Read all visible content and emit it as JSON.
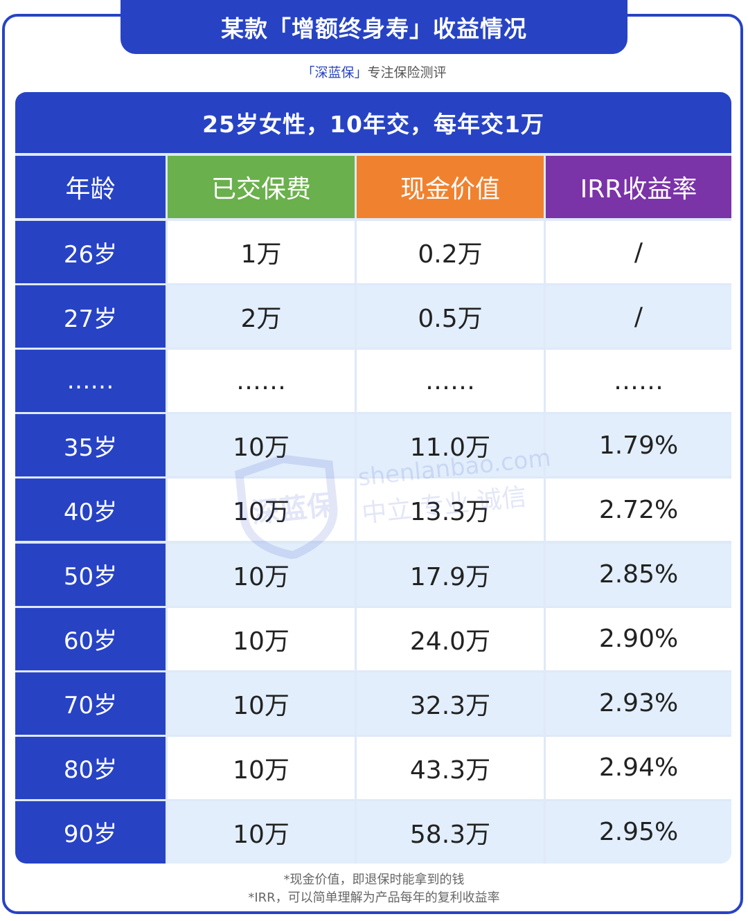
{
  "title": "某款「增额终身寿」收益情况",
  "subtitle": {
    "brand": "「深蓝保」",
    "tagline": "专注保险测评"
  },
  "table": {
    "caption": "25岁女性，10年交，每年交1万",
    "headers": [
      "年龄",
      "已交保费",
      "现金价值",
      "IRR收益率"
    ],
    "header_colors": [
      "#2743c4",
      "#6ab04c",
      "#f0822f",
      "#7b33a8"
    ],
    "rows": [
      [
        "26岁",
        "1万",
        "0.2万",
        "/"
      ],
      [
        "27岁",
        "2万",
        "0.5万",
        "/"
      ],
      [
        "……",
        "……",
        "……",
        "……"
      ],
      [
        "35岁",
        "10万",
        "11.0万",
        "1.79%"
      ],
      [
        "40岁",
        "10万",
        "13.3万",
        "2.72%"
      ],
      [
        "50岁",
        "10万",
        "17.9万",
        "2.85%"
      ],
      [
        "60岁",
        "10万",
        "24.0万",
        "2.90%"
      ],
      [
        "70岁",
        "10万",
        "32.3万",
        "2.93%"
      ],
      [
        "80岁",
        "10万",
        "43.3万",
        "2.94%"
      ],
      [
        "90岁",
        "10万",
        "58.3万",
        "2.95%"
      ]
    ]
  },
  "watermark": {
    "site": "shenlanbao.com",
    "slogan": "中立 专业 诚信",
    "logo_text": "深蓝保"
  },
  "footnotes": [
    "*现金价值，即退保时能拿到的钱",
    "*IRR，可以简单理解为产品每年的复利收益率"
  ],
  "colors": {
    "primary": "#2743c4",
    "row_alt": "#e2eefc"
  }
}
